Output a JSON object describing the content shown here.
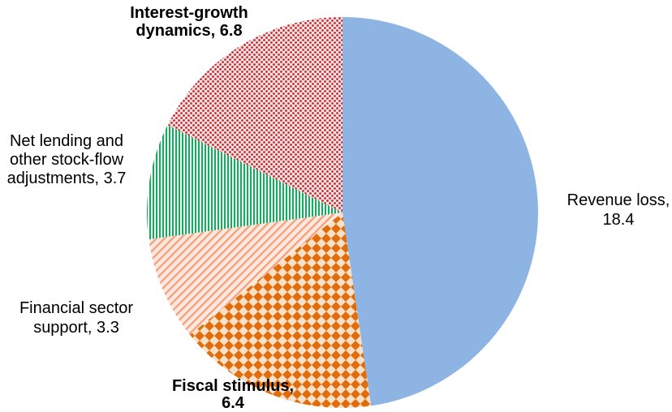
{
  "chart_data": {
    "type": "pie",
    "title": "",
    "start_angle": 0,
    "direction": "clockwise",
    "legend": "none",
    "slices": [
      {
        "label": "Revenue loss",
        "value": 18.4,
        "value_text": "18.4",
        "color": "#8db4e2",
        "pattern": "solid"
      },
      {
        "label": "Fiscal stimulus",
        "value": 6.4,
        "value_text": "6.4",
        "color": "#e26b0a",
        "pattern": "diamond-checker"
      },
      {
        "label": "Financial sector support",
        "value": 3.3,
        "value_text": "3.3",
        "color": "#f4a582",
        "pattern": "diagonal-hatch"
      },
      {
        "label": "Net lending and other stock-flow adjustments",
        "value": 3.7,
        "value_text": "3.7",
        "color": "#21a366",
        "pattern": "vertical-lines"
      },
      {
        "label": "Interest-growth dynamics",
        "value": 6.8,
        "value_text": "6.8",
        "color": "#c0272d",
        "pattern": "dots"
      }
    ]
  }
}
